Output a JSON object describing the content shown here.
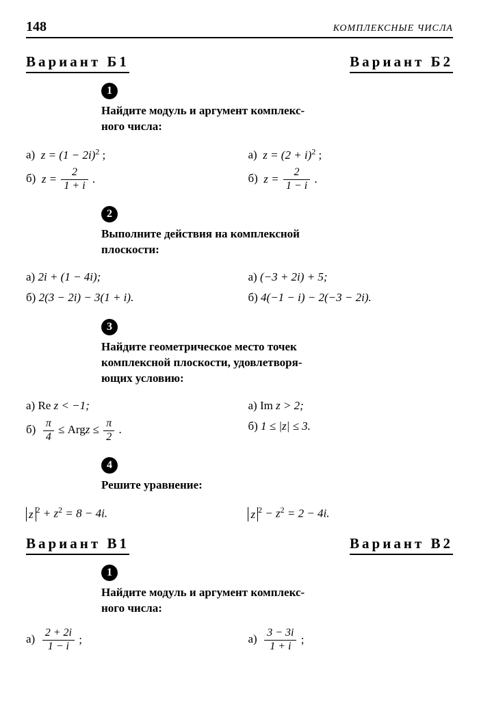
{
  "page_number": "148",
  "chapter_title": "КОМПЛЕКСНЫЕ ЧИСЛА",
  "variant_b1": "Вариант Б1",
  "variant_b2": "Вариант Б2",
  "variant_v1": "Вариант В1",
  "variant_v2": "Вариант В2",
  "badge1": "1",
  "badge2": "2",
  "badge3": "3",
  "badge4": "4",
  "instr1_l1": "Найдите модуль и аргумент комплекс-",
  "instr1_l2": "ного числа:",
  "instr2_l1": "Выполните действия на комплексной",
  "instr2_l2": "плоскости:",
  "instr3_l1": "Найдите геометрическое место точек",
  "instr3_l2": "комплексной плоскости, удовлетворя-",
  "instr3_l3": "ющих условию:",
  "instr4": "Решите уравнение:",
  "instr5_l1": "Найдите модуль и аргумент комплекс-",
  "instr5_l2": "ного числа:",
  "b1": {
    "p1a_lhs": "z = (1 − 2i)",
    "p1a_power": "2",
    "p1a_tail": " ;",
    "p1b_lhs": "z = ",
    "p1b_num": "2",
    "p1b_den": "1 + i",
    "p1b_tail": " .",
    "p2a": "2i + (1 − 4i);",
    "p2b": "2(3 − 2i) − 3(1 + i).",
    "p3a": "Re z < −1;",
    "p3b_pre": " ≤ Arg",
    "p3b_post": " ≤ ",
    "p3b_tail": " .",
    "p3b_num1": "π",
    "p3b_den1": "4",
    "p3b_num2": "π",
    "p3b_den2": "2",
    "p4_lhs_text": " + z",
    "p4_rhs": " = 8 − 4i."
  },
  "b2": {
    "p1a_lhs": "z = (2 + i)",
    "p1a_power": "2",
    "p1a_tail": " ;",
    "p1b_lhs": "z = ",
    "p1b_num": "2",
    "p1b_den": "1 − i",
    "p1b_tail": " .",
    "p2a": "(−3 + 2i) + 5;",
    "p2b": "4(−1 − i) − 2(−3 − 2i).",
    "p3a": "Im z > 2;",
    "p3b": "1 ≤ |z| ≤ 3.",
    "p4_lhs_text": " − z",
    "p4_rhs": " = 2 − 4i."
  },
  "v1": {
    "p1a_num": "2 + 2i",
    "p1a_den": "1 − i",
    "tail": " ;"
  },
  "v2": {
    "p1a_num": "3 − 3i",
    "p1a_den": "1 + i",
    "tail": " ;"
  },
  "labels": {
    "a": "а)",
    "b": "б)"
  },
  "z_letter": "z",
  "z_arg_for_p3b": "z",
  "sup2": "2"
}
